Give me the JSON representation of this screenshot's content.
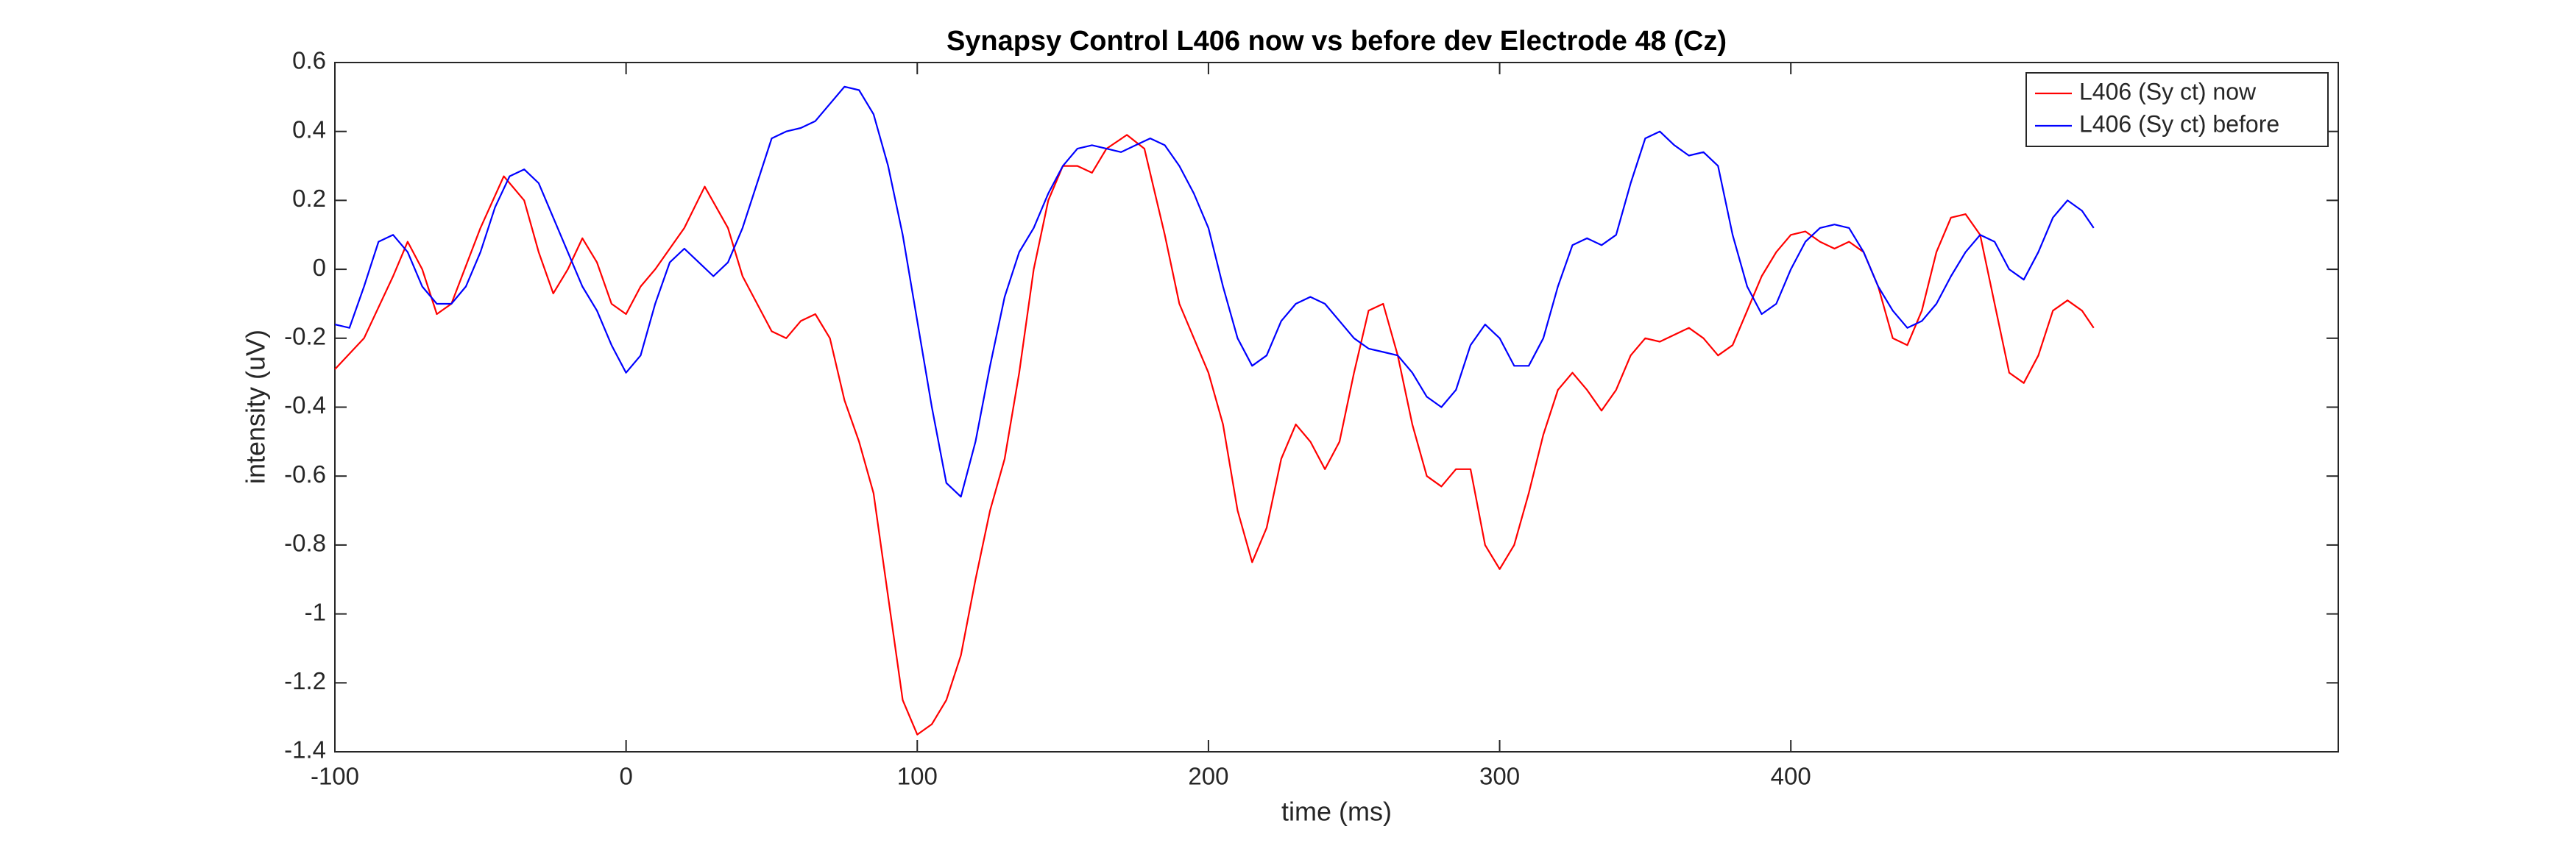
{
  "chart_data": {
    "type": "line",
    "title": "Synapsy Control L406 now vs before dev Electrode 48 (Cz)",
    "xlabel": "time (ms)",
    "ylabel": "intensity (uV)",
    "xlim": [
      -100,
      588
    ],
    "ylim": [
      -1.4,
      0.6
    ],
    "xticks": [
      -100,
      0,
      100,
      200,
      300,
      400
    ],
    "yticks": [
      -1.4,
      -1.2,
      -1,
      -0.8,
      -0.6,
      -0.4,
      -0.2,
      0,
      0.2,
      0.4,
      0.6
    ],
    "legend": "top-right",
    "series": [
      {
        "name": "L406 (Sy ct) now",
        "color": "#ff0000",
        "x": [
          -100,
          -90,
          -80,
          -75,
          -70,
          -65,
          -60,
          -50,
          -42,
          -35,
          -30,
          -25,
          -20,
          -15,
          -10,
          -5,
          0,
          5,
          10,
          20,
          27,
          35,
          40,
          50,
          55,
          60,
          65,
          70,
          75,
          80,
          85,
          90,
          95,
          100,
          105,
          110,
          115,
          120,
          125,
          130,
          135,
          140,
          145,
          150,
          155,
          160,
          165,
          172,
          178,
          185,
          190,
          200,
          205,
          210,
          215,
          220,
          225,
          230,
          235,
          240,
          245,
          250,
          255,
          260,
          265,
          270,
          275,
          280,
          285,
          290,
          295,
          300,
          305,
          310,
          315,
          320,
          325,
          330,
          335,
          340,
          345,
          350,
          355,
          360,
          365,
          370,
          375,
          380,
          385,
          390,
          395,
          400,
          405,
          410,
          415,
          420,
          425,
          430,
          435,
          440,
          445,
          450,
          455,
          460,
          465,
          470,
          475,
          480,
          485,
          490,
          495,
          500,
          504
        ],
        "values": [
          -0.29,
          -0.2,
          -0.02,
          0.08,
          0.0,
          -0.13,
          -0.1,
          0.12,
          0.27,
          0.2,
          0.05,
          -0.07,
          0.0,
          0.09,
          0.02,
          -0.1,
          -0.13,
          -0.05,
          0.0,
          0.12,
          0.24,
          0.12,
          -0.02,
          -0.18,
          -0.2,
          -0.15,
          -0.13,
          -0.2,
          -0.38,
          -0.5,
          -0.65,
          -0.95,
          -1.25,
          -1.35,
          -1.32,
          -1.25,
          -1.12,
          -0.9,
          -0.7,
          -0.55,
          -0.3,
          0.0,
          0.2,
          0.3,
          0.3,
          0.28,
          0.35,
          0.39,
          0.35,
          0.1,
          -0.1,
          -0.3,
          -0.45,
          -0.7,
          -0.85,
          -0.75,
          -0.55,
          -0.45,
          -0.5,
          -0.58,
          -0.5,
          -0.3,
          -0.12,
          -0.1,
          -0.25,
          -0.45,
          -0.6,
          -0.63,
          -0.58,
          -0.58,
          -0.8,
          -0.87,
          -0.8,
          -0.65,
          -0.48,
          -0.35,
          -0.3,
          -0.35,
          -0.41,
          -0.35,
          -0.25,
          -0.2,
          -0.21,
          -0.19,
          -0.17,
          -0.2,
          -0.25,
          -0.22,
          -0.12,
          -0.02,
          0.05,
          0.1,
          0.11,
          0.08,
          0.06,
          0.08,
          0.05,
          -0.05,
          -0.2,
          -0.22,
          -0.12,
          0.05,
          0.15,
          0.16,
          0.1,
          -0.1,
          -0.3,
          -0.33,
          -0.25,
          -0.12,
          -0.09,
          -0.12,
          -0.17
        ]
      },
      {
        "name": "L406 (Sy ct) before",
        "color": "#0000ff",
        "x": [
          -100,
          -95,
          -90,
          -85,
          -80,
          -75,
          -70,
          -65,
          -60,
          -55,
          -50,
          -45,
          -40,
          -35,
          -30,
          -25,
          -20,
          -15,
          -10,
          -5,
          0,
          5,
          10,
          15,
          20,
          25,
          30,
          35,
          40,
          45,
          50,
          55,
          60,
          65,
          70,
          75,
          80,
          85,
          90,
          95,
          100,
          105,
          110,
          115,
          120,
          125,
          130,
          135,
          140,
          145,
          150,
          155,
          160,
          165,
          170,
          175,
          180,
          185,
          190,
          195,
          200,
          205,
          210,
          215,
          220,
          225,
          230,
          235,
          240,
          245,
          250,
          255,
          260,
          265,
          270,
          275,
          280,
          285,
          290,
          295,
          300,
          305,
          310,
          315,
          320,
          325,
          330,
          335,
          340,
          345,
          350,
          355,
          360,
          365,
          370,
          375,
          380,
          385,
          390,
          395,
          400,
          405,
          410,
          415,
          420,
          425,
          430,
          435,
          440,
          445,
          450,
          455,
          460,
          465,
          470,
          475,
          480,
          485,
          490,
          495,
          500,
          504
        ],
        "values": [
          -0.16,
          -0.17,
          -0.05,
          0.08,
          0.1,
          0.05,
          -0.05,
          -0.1,
          -0.1,
          -0.05,
          0.05,
          0.18,
          0.27,
          0.29,
          0.25,
          0.15,
          0.05,
          -0.05,
          -0.12,
          -0.22,
          -0.3,
          -0.25,
          -0.1,
          0.02,
          0.06,
          0.02,
          -0.02,
          0.02,
          0.12,
          0.25,
          0.38,
          0.4,
          0.41,
          0.43,
          0.48,
          0.53,
          0.52,
          0.45,
          0.3,
          0.1,
          -0.15,
          -0.4,
          -0.62,
          -0.66,
          -0.5,
          -0.28,
          -0.08,
          0.05,
          0.12,
          0.22,
          0.3,
          0.35,
          0.36,
          0.35,
          0.34,
          0.36,
          0.38,
          0.36,
          0.3,
          0.22,
          0.12,
          -0.05,
          -0.2,
          -0.28,
          -0.25,
          -0.15,
          -0.1,
          -0.08,
          -0.1,
          -0.15,
          -0.2,
          -0.23,
          -0.24,
          -0.25,
          -0.3,
          -0.37,
          -0.4,
          -0.35,
          -0.22,
          -0.16,
          -0.2,
          -0.28,
          -0.28,
          -0.2,
          -0.05,
          0.07,
          0.09,
          0.07,
          0.1,
          0.25,
          0.38,
          0.4,
          0.36,
          0.33,
          0.34,
          0.3,
          0.1,
          -0.05,
          -0.13,
          -0.1,
          0.0,
          0.08,
          0.12,
          0.13,
          0.12,
          0.05,
          -0.05,
          -0.12,
          -0.17,
          -0.15,
          -0.1,
          -0.02,
          0.05,
          0.1,
          0.08,
          0.0,
          -0.03,
          0.05,
          0.15,
          0.2,
          0.17,
          0.12
        ]
      }
    ]
  }
}
